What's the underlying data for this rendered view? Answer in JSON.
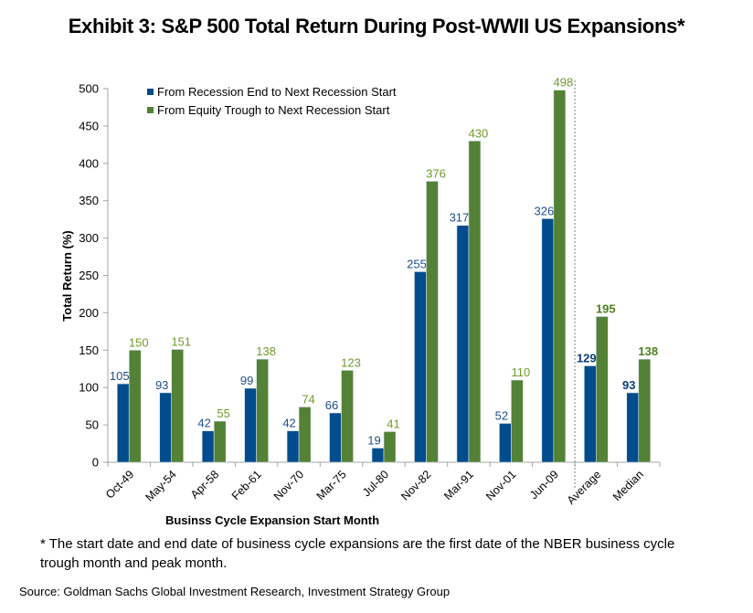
{
  "title": "Exhibit 3: S&P 500 Total Return During Post-WWII US Expansions*",
  "footnote": "* The start date and end date of business cycle expansions are the first date of the NBER business cycle trough month and peak month.",
  "source": "Source: Goldman Sachs Global Investment Research, Investment Strategy Group",
  "chart_data": {
    "type": "bar",
    "title": "Exhibit 3: S&P 500 Total Return During Post-WWII US Expansions*",
    "xlabel": "Businss Cycle Expansion Start Month",
    "ylabel": "Total Return (%)",
    "ylim": [
      0,
      500
    ],
    "yticks": [
      0,
      50,
      100,
      150,
      200,
      250,
      300,
      350,
      400,
      450,
      500
    ],
    "grid": false,
    "legend_position": "top-left",
    "categories": [
      "Oct-49",
      "May-54",
      "Apr-58",
      "Feb-61",
      "Nov-70",
      "Mar-75",
      "Jul-80",
      "Nov-82",
      "Mar-91",
      "Nov-01",
      "Jun-09",
      "Average",
      "Median"
    ],
    "summary_categories": [
      "Average",
      "Median"
    ],
    "separator_after": "Jun-09",
    "series": [
      {
        "name": "From Recession End to Next Recession Start",
        "color": "#004C8C",
        "values": [
          105,
          93,
          42,
          99,
          42,
          66,
          19,
          255,
          317,
          52,
          326,
          129,
          93
        ]
      },
      {
        "name": "From Equity Trough to Next Recession Start",
        "color": "#538135",
        "label_color": "#6F9A2A",
        "values": [
          150,
          151,
          55,
          138,
          74,
          123,
          41,
          376,
          430,
          110,
          498,
          195,
          138
        ]
      }
    ]
  }
}
